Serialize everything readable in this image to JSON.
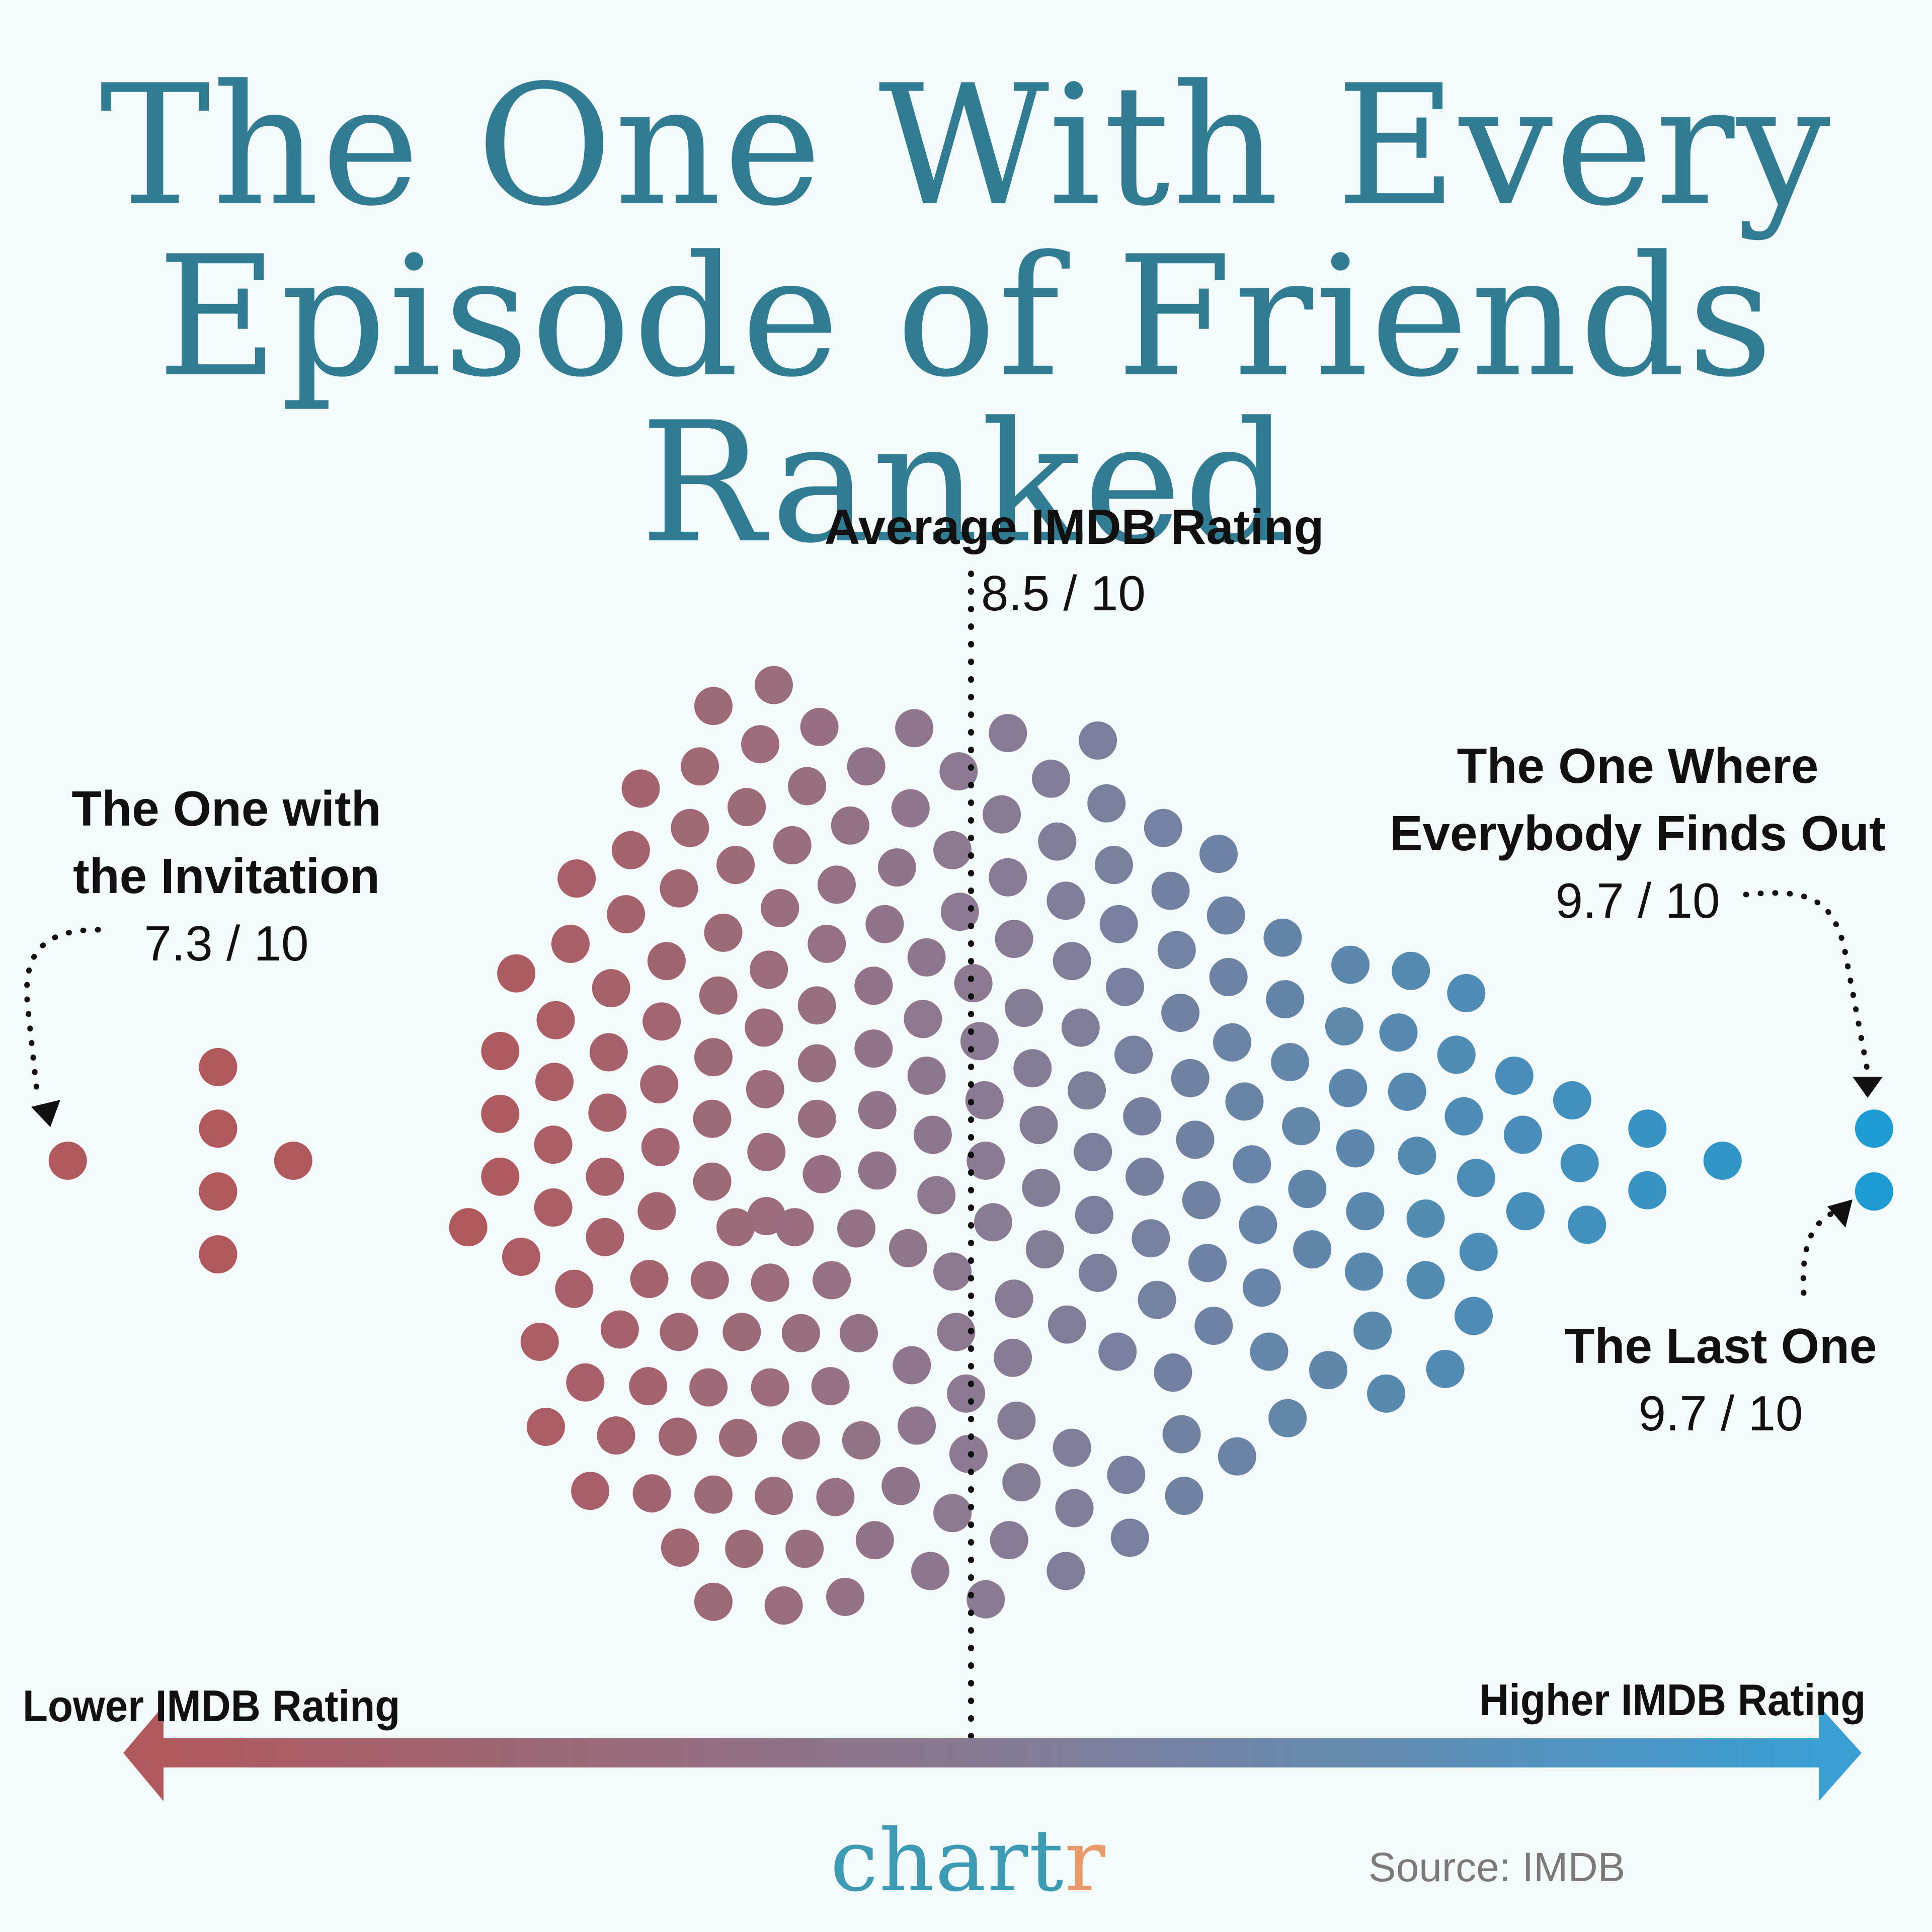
{
  "title": {
    "line1": "The One With Every",
    "line2": "Episode of Friends Ranked"
  },
  "annotations": {
    "average": {
      "title": "Average IMDB Rating",
      "value": "8.5 / 10"
    },
    "lowest": {
      "line1": "The One with",
      "line2": "the Invitation",
      "value": "7.3 / 10"
    },
    "highest": {
      "line1": "The One Where",
      "line2": "Everybody Finds Out",
      "value": "9.7 / 10"
    },
    "last": {
      "line1": "The Last One",
      "value": "9.7 / 10"
    }
  },
  "axis": {
    "left_label": "Lower IMDB Rating",
    "right_label": "Higher IMDB Rating",
    "left_color": "#b0585c",
    "mid_color": "#857a94",
    "right_color": "#3a9fd4"
  },
  "footer": {
    "brand_main": "chart",
    "brand_r": "r",
    "source": "Source: IMDB"
  },
  "colors": {
    "title": "#2f7c93",
    "dot_low": "#b0585c",
    "dot_mid": "#8b7a92",
    "dot_high": "#1d9bd2",
    "background": "#f4f9fa"
  },
  "chart_data": {
    "type": "scatter",
    "subtype": "beeswarm",
    "title": "The One With Every Episode of Friends Ranked",
    "xlabel": "IMDB Rating (Lower → Higher)",
    "ylabel": "",
    "grid": false,
    "average_rating": 8.5,
    "min_rating": 7.3,
    "max_rating": 9.7,
    "scale": "rating out of 10",
    "highlighted": [
      {
        "episode": "The One with the Invitation",
        "rating": 7.3
      },
      {
        "episode": "The One Where Everybody Finds Out",
        "rating": 9.7
      },
      {
        "episode": "The Last One",
        "rating": 9.7
      }
    ],
    "coord_scale": 2.449,
    "points": [
      [
        55,
        942
      ],
      [
        177,
        866
      ],
      [
        177,
        916
      ],
      [
        177,
        967
      ],
      [
        177,
        1018
      ],
      [
        238,
        942
      ],
      [
        628,
        556
      ],
      [
        579,
        573
      ],
      [
        665,
        590
      ],
      [
        742,
        591
      ],
      [
        818,
        595
      ],
      [
        891,
        601
      ],
      [
        617,
        604
      ],
      [
        568,
        622
      ],
      [
        703,
        622
      ],
      [
        778,
        626
      ],
      [
        853,
        632
      ],
      [
        520,
        640
      ],
      [
        655,
        638
      ],
      [
        606,
        655
      ],
      [
        739,
        656
      ],
      [
        813,
        661
      ],
      [
        898,
        652
      ],
      [
        560,
        672
      ],
      [
        690,
        670
      ],
      [
        944,
        672
      ],
      [
        989,
        693
      ],
      [
        512,
        690
      ],
      [
        643,
        686
      ],
      [
        597,
        702
      ],
      [
        728,
        704
      ],
      [
        773,
        690
      ],
      [
        858,
        683
      ],
      [
        904,
        702
      ],
      [
        468,
        713
      ],
      [
        551,
        721
      ],
      [
        679,
        718
      ],
      [
        818,
        712
      ],
      [
        950,
        723
      ],
      [
        508,
        742
      ],
      [
        633,
        737
      ],
      [
        587,
        757
      ],
      [
        718,
        750
      ],
      [
        779,
        740
      ],
      [
        865,
        731
      ],
      [
        908,
        750
      ],
      [
        995,
        743
      ],
      [
        463,
        766
      ],
      [
        541,
        780
      ],
      [
        671,
        766
      ],
      [
        752,
        777
      ],
      [
        823,
        762
      ],
      [
        1041,
        761
      ],
      [
        419,
        790
      ],
      [
        624,
        787
      ],
      [
        583,
        808
      ],
      [
        709,
        800
      ],
      [
        870,
        780
      ],
      [
        955,
        771
      ],
      [
        1096,
        783
      ],
      [
        1145,
        788
      ],
      [
        496,
        802
      ],
      [
        537,
        829
      ],
      [
        663,
        816
      ],
      [
        790,
        798
      ],
      [
        913,
        801
      ],
      [
        997,
        793
      ],
      [
        451,
        828
      ],
      [
        620,
        834
      ],
      [
        749,
        827
      ],
      [
        831,
        818
      ],
      [
        1043,
        811
      ],
      [
        1190,
        806
      ],
      [
        406,
        853
      ],
      [
        579,
        858
      ],
      [
        709,
        851
      ],
      [
        877,
        834
      ],
      [
        958,
        822
      ],
      [
        1091,
        833
      ],
      [
        1135,
        838
      ],
      [
        494,
        854
      ],
      [
        535,
        880
      ],
      [
        663,
        863
      ],
      [
        795,
        845
      ],
      [
        920,
        856
      ],
      [
        1000,
        846
      ],
      [
        1182,
        856
      ],
      [
        450,
        878
      ],
      [
        621,
        884
      ],
      [
        752,
        873
      ],
      [
        838,
        867
      ],
      [
        1047,
        862
      ],
      [
        1229,
        873
      ],
      [
        406,
        904
      ],
      [
        578,
        908
      ],
      [
        712,
        901
      ],
      [
        882,
        885
      ],
      [
        966,
        875
      ],
      [
        1094,
        883
      ],
      [
        1142,
        886
      ],
      [
        1276,
        893
      ],
      [
        493,
        903
      ],
      [
        536,
        931
      ],
      [
        663,
        908
      ],
      [
        799,
        893
      ],
      [
        927,
        906
      ],
      [
        1010,
        894
      ],
      [
        1188,
        906
      ],
      [
        1337,
        916
      ],
      [
        449,
        929
      ],
      [
        622,
        935
      ],
      [
        757,
        921
      ],
      [
        843,
        913
      ],
      [
        1056,
        914
      ],
      [
        1236,
        921
      ],
      [
        406,
        955
      ],
      [
        578,
        959
      ],
      [
        712,
        950
      ],
      [
        887,
        935
      ],
      [
        970,
        925
      ],
      [
        1100,
        932
      ],
      [
        1150,
        938
      ],
      [
        1282,
        944
      ],
      [
        1398,
        942
      ],
      [
        491,
        955
      ],
      [
        533,
        983
      ],
      [
        667,
        953
      ],
      [
        800,
        942
      ],
      [
        929,
        955
      ],
      [
        1016,
        945
      ],
      [
        1198,
        956
      ],
      [
        449,
        980
      ],
      [
        622,
        987
      ],
      [
        760,
        970
      ],
      [
        845,
        964
      ],
      [
        1061,
        965
      ],
      [
        1238,
        983
      ],
      [
        1337,
        966
      ],
      [
        380,
        996
      ],
      [
        597,
        996
      ],
      [
        645,
        996
      ],
      [
        695,
        997
      ],
      [
        806,
        992
      ],
      [
        888,
        986
      ],
      [
        975,
        974
      ],
      [
        1108,
        983
      ],
      [
        1157,
        989
      ],
      [
        1288,
        994
      ],
      [
        423,
        1020
      ],
      [
        491,
        1004
      ],
      [
        737,
        1013
      ],
      [
        934,
        1005
      ],
      [
        1021,
        994
      ],
      [
        1200,
        1016
      ],
      [
        466,
        1046
      ],
      [
        527,
        1038
      ],
      [
        576,
        1039
      ],
      [
        625,
        1041
      ],
      [
        675,
        1039
      ],
      [
        773,
        1032
      ],
      [
        848,
        1014
      ],
      [
        1065,
        1014
      ],
      [
        1157,
        1039
      ],
      [
        438,
        1089
      ],
      [
        503,
        1079
      ],
      [
        551,
        1081
      ],
      [
        602,
        1081
      ],
      [
        650,
        1082
      ],
      [
        697,
        1082
      ],
      [
        776,
        1081
      ],
      [
        891,
        1033
      ],
      [
        980,
        1025
      ],
      [
        1107,
        1032
      ],
      [
        475,
        1122
      ],
      [
        526,
        1125
      ],
      [
        575,
        1126
      ],
      [
        625,
        1126
      ],
      [
        674,
        1125
      ],
      [
        740,
        1108
      ],
      [
        823,
        1054
      ],
      [
        939,
        1055
      ],
      [
        1024,
        1045
      ],
      [
        1196,
        1068
      ],
      [
        443,
        1158
      ],
      [
        500,
        1165
      ],
      [
        550,
        1166
      ],
      [
        599,
        1167
      ],
      [
        650,
        1169
      ],
      [
        699,
        1169
      ],
      [
        744,
        1157
      ],
      [
        866,
        1075
      ],
      [
        985,
        1076
      ],
      [
        1114,
        1080
      ],
      [
        479,
        1210
      ],
      [
        529,
        1212
      ],
      [
        579,
        1213
      ],
      [
        628,
        1214
      ],
      [
        678,
        1215
      ],
      [
        731,
        1206
      ],
      [
        784,
        1131
      ],
      [
        822,
        1102
      ],
      [
        907,
        1097
      ],
      [
        1030,
        1097
      ],
      [
        1173,
        1111
      ],
      [
        552,
        1256
      ],
      [
        604,
        1257
      ],
      [
        653,
        1257
      ],
      [
        710,
        1250
      ],
      [
        773,
        1228
      ],
      [
        825,
        1153
      ],
      [
        952,
        1114
      ],
      [
        1078,
        1112
      ],
      [
        1125,
        1131
      ],
      [
        579,
        1300
      ],
      [
        636,
        1303
      ],
      [
        686,
        1296
      ],
      [
        755,
        1275
      ],
      [
        800,
        1298
      ],
      [
        819,
        1250
      ],
      [
        865,
        1275
      ],
      [
        870,
        1175
      ],
      [
        917,
        1248
      ],
      [
        914,
        1197
      ],
      [
        959,
        1164
      ],
      [
        1004,
        1182
      ],
      [
        1045,
        1151
      ],
      [
        961,
        1214
      ],
      [
        872,
        1224
      ],
      [
        829,
        1203
      ],
      [
        786,
        1180
      ],
      [
        1521,
        916
      ],
      [
        1521,
        967
      ]
    ]
  }
}
